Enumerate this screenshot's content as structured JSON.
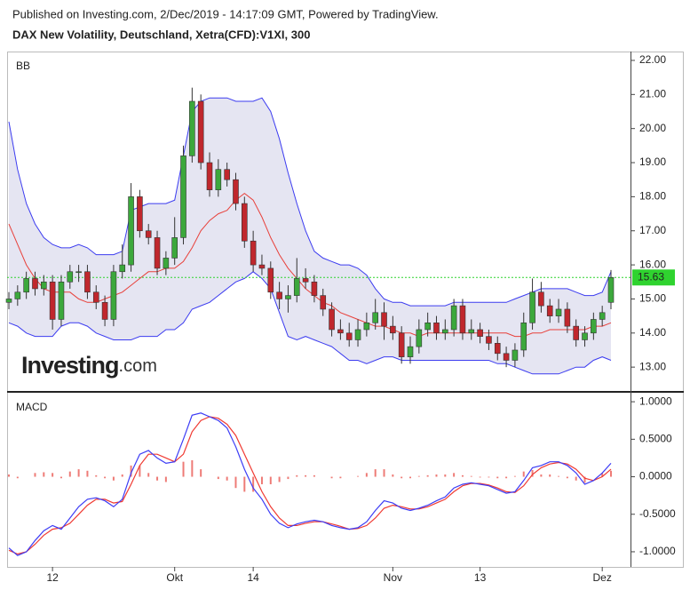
{
  "header": {
    "published": "Published on Investing.com, 2/Dec/2019 - 14:17:09 GMT, Powered by TradingView.",
    "title": "DAX New Volatility, Deutschland, Xetra(CFD):V1XI, 300"
  },
  "logo": {
    "brand": "Investing",
    "suffix": ".com"
  },
  "chart_data": [
    {
      "type": "candlestick",
      "name": "BB",
      "categories": [
        null,
        null,
        null,
        null,
        null,
        "12",
        null,
        null,
        null,
        null,
        null,
        null,
        null,
        null,
        null,
        null,
        null,
        null,
        null,
        "Okt",
        null,
        null,
        null,
        null,
        null,
        null,
        null,
        null,
        "14",
        null,
        null,
        null,
        null,
        null,
        null,
        null,
        null,
        null,
        null,
        null,
        null,
        null,
        null,
        null,
        "Nov",
        null,
        null,
        null,
        null,
        null,
        null,
        null,
        null,
        null,
        "13",
        null,
        null,
        null,
        null,
        null,
        null,
        null,
        null,
        null,
        null,
        null,
        null,
        null,
        "Dez",
        null
      ],
      "open": [
        14.9,
        15.0,
        15.2,
        15.6,
        15.3,
        15.5,
        14.4,
        15.5,
        15.8,
        15.8,
        15.2,
        14.9,
        14.4,
        15.8,
        16.0,
        18.0,
        17.0,
        16.8,
        15.9,
        16.2,
        16.8,
        19.2,
        20.8,
        19.0,
        18.2,
        18.8,
        18.5,
        17.8,
        16.7,
        16.0,
        15.9,
        15.2,
        15.0,
        15.1,
        15.6,
        15.5,
        15.1,
        14.7,
        14.1,
        14.0,
        13.8,
        14.1,
        14.3,
        14.6,
        14.2,
        14.0,
        13.3,
        13.6,
        14.1,
        14.3,
        14.0,
        14.1,
        14.8,
        14.0,
        14.1,
        13.9,
        13.7,
        13.4,
        13.2,
        13.5,
        14.3,
        15.2,
        14.8,
        14.5,
        14.7,
        14.2,
        13.8,
        14.0,
        14.4,
        14.9
      ],
      "high": [
        15.2,
        15.4,
        15.8,
        15.8,
        15.7,
        15.7,
        15.7,
        16.0,
        16.0,
        16.0,
        15.4,
        15.1,
        16.0,
        16.6,
        18.4,
        18.2,
        17.2,
        17.0,
        16.4,
        17.4,
        19.5,
        21.2,
        21.0,
        19.3,
        19.1,
        19.0,
        18.7,
        18.0,
        17.0,
        16.3,
        16.1,
        15.5,
        15.4,
        16.2,
        15.9,
        15.7,
        15.3,
        14.9,
        14.4,
        14.3,
        14.4,
        14.6,
        15.0,
        14.9,
        14.5,
        14.2,
        13.9,
        14.4,
        14.6,
        14.5,
        14.4,
        15.0,
        15.0,
        14.4,
        14.3,
        14.1,
        13.9,
        13.6,
        13.7,
        14.6,
        15.6,
        15.5,
        15.0,
        15.0,
        14.9,
        14.4,
        14.2,
        14.6,
        14.8,
        15.85
      ],
      "low": [
        14.7,
        14.8,
        15.0,
        15.1,
        15.1,
        14.1,
        14.2,
        15.3,
        15.5,
        15.0,
        14.7,
        14.2,
        14.2,
        15.6,
        15.8,
        16.8,
        16.6,
        15.7,
        15.7,
        16.0,
        16.6,
        19.0,
        18.8,
        18.0,
        18.0,
        18.3,
        17.6,
        16.5,
        15.8,
        15.7,
        15.0,
        14.7,
        14.6,
        14.9,
        15.3,
        14.9,
        14.5,
        13.9,
        13.8,
        13.6,
        13.6,
        13.9,
        14.1,
        13.8,
        13.8,
        13.1,
        13.1,
        13.4,
        13.9,
        13.8,
        13.8,
        13.9,
        13.8,
        13.8,
        13.7,
        13.5,
        13.2,
        13.0,
        13.0,
        13.3,
        14.1,
        14.6,
        14.3,
        14.3,
        14.0,
        13.6,
        13.6,
        13.8,
        14.2,
        14.7
      ],
      "close": [
        15.0,
        15.2,
        15.6,
        15.3,
        15.5,
        14.4,
        15.5,
        15.8,
        15.8,
        15.2,
        14.9,
        14.4,
        15.8,
        16.0,
        18.0,
        17.0,
        16.8,
        15.9,
        16.2,
        16.8,
        19.2,
        20.8,
        19.0,
        18.2,
        18.8,
        18.5,
        17.8,
        16.7,
        16.0,
        15.9,
        15.2,
        15.0,
        15.1,
        15.6,
        15.5,
        15.1,
        14.7,
        14.1,
        14.0,
        13.8,
        14.1,
        14.3,
        14.6,
        14.2,
        14.0,
        13.3,
        13.6,
        14.1,
        14.3,
        14.0,
        14.1,
        14.8,
        14.0,
        14.1,
        13.9,
        13.7,
        13.4,
        13.2,
        13.5,
        14.3,
        15.2,
        14.8,
        14.5,
        14.7,
        14.2,
        13.8,
        14.0,
        14.4,
        14.6,
        15.63
      ],
      "upper": [
        20.2,
        18.8,
        17.8,
        17.2,
        16.8,
        16.6,
        16.5,
        16.5,
        16.6,
        16.5,
        16.3,
        16.3,
        16.3,
        16.4,
        17.6,
        17.7,
        17.8,
        17.8,
        17.8,
        17.9,
        19.2,
        20.5,
        20.8,
        20.9,
        20.9,
        20.9,
        20.8,
        20.8,
        20.8,
        20.9,
        20.5,
        19.7,
        18.7,
        17.8,
        17.0,
        16.4,
        16.2,
        16.1,
        16.0,
        16.0,
        15.9,
        15.7,
        15.3,
        15.0,
        14.9,
        14.9,
        14.8,
        14.8,
        14.8,
        14.8,
        14.8,
        14.9,
        14.9,
        14.9,
        14.9,
        14.9,
        14.9,
        14.9,
        15.0,
        15.1,
        15.2,
        15.3,
        15.3,
        15.3,
        15.3,
        15.2,
        15.1,
        15.1,
        15.2,
        15.8
      ],
      "middle": [
        17.2,
        16.6,
        16.0,
        15.6,
        15.3,
        15.2,
        15.2,
        15.2,
        15.0,
        14.9,
        14.9,
        15.0,
        15.1,
        15.2,
        15.4,
        15.6,
        15.8,
        15.8,
        15.9,
        15.9,
        16.1,
        16.5,
        17.0,
        17.3,
        17.5,
        17.6,
        17.9,
        18.1,
        17.9,
        17.4,
        16.8,
        16.3,
        15.9,
        15.6,
        15.3,
        15.1,
        14.9,
        14.8,
        14.6,
        14.5,
        14.4,
        14.3,
        14.2,
        14.2,
        14.1,
        14.0,
        14.0,
        13.9,
        14.0,
        14.0,
        14.0,
        14.0,
        14.0,
        14.0,
        14.0,
        14.0,
        14.0,
        14.0,
        13.9,
        13.9,
        14.0,
        14.0,
        14.1,
        14.1,
        14.1,
        14.1,
        14.1,
        14.2,
        14.2,
        14.3
      ],
      "lower": [
        14.3,
        14.2,
        14.0,
        13.9,
        13.9,
        13.9,
        14.2,
        14.3,
        14.3,
        14.2,
        14.0,
        13.9,
        13.8,
        13.8,
        13.8,
        13.9,
        13.9,
        13.9,
        14.1,
        14.1,
        14.3,
        14.7,
        14.8,
        14.9,
        15.1,
        15.3,
        15.5,
        15.6,
        15.8,
        15.6,
        15.3,
        14.6,
        13.9,
        13.8,
        13.9,
        13.8,
        13.7,
        13.6,
        13.4,
        13.2,
        13.2,
        13.1,
        13.2,
        13.3,
        13.3,
        13.2,
        13.2,
        13.2,
        13.2,
        13.2,
        13.2,
        13.2,
        13.2,
        13.2,
        13.2,
        13.2,
        13.1,
        13.1,
        13.0,
        12.9,
        12.8,
        12.8,
        12.8,
        12.8,
        12.9,
        13.0,
        13.0,
        13.2,
        13.3,
        13.2
      ],
      "up_color": "#3ca83c",
      "down_color": "#c0272d",
      "band_color": "#3c3cf0",
      "band_fill": "#e1e1f0",
      "middle_color": "#e8403a",
      "last_color": "#2fd32f",
      "last_value": 15.63,
      "ylim": [
        12.3,
        22.26
      ],
      "yticks": [
        {
          "value": 13,
          "label": "13.00"
        },
        {
          "value": 14,
          "label": "14.00"
        },
        {
          "value": 15,
          "label": "15.00"
        },
        {
          "value": 16,
          "label": "16.00"
        },
        {
          "value": 17,
          "label": "17.00"
        },
        {
          "value": 18,
          "label": "18.00"
        },
        {
          "value": 19,
          "label": "19.00"
        },
        {
          "value": 20,
          "label": "20.00"
        },
        {
          "value": 21,
          "label": "21.00"
        },
        {
          "value": 22,
          "label": "22.00"
        }
      ]
    },
    {
      "type": "macd",
      "name": "MACD",
      "macd": [
        -0.95,
        -1.05,
        -1.0,
        -0.85,
        -0.72,
        -0.65,
        -0.7,
        -0.55,
        -0.4,
        -0.3,
        -0.28,
        -0.32,
        -0.4,
        -0.3,
        0.05,
        0.3,
        0.35,
        0.25,
        0.18,
        0.2,
        0.5,
        0.82,
        0.85,
        0.8,
        0.75,
        0.65,
        0.4,
        0.1,
        -0.15,
        -0.3,
        -0.5,
        -0.62,
        -0.68,
        -0.63,
        -0.6,
        -0.58,
        -0.6,
        -0.65,
        -0.68,
        -0.7,
        -0.68,
        -0.6,
        -0.45,
        -0.32,
        -0.35,
        -0.42,
        -0.45,
        -0.42,
        -0.38,
        -0.32,
        -0.27,
        -0.15,
        -0.1,
        -0.08,
        -0.1,
        -0.12,
        -0.17,
        -0.22,
        -0.2,
        -0.05,
        0.12,
        0.15,
        0.2,
        0.2,
        0.15,
        0.05,
        -0.1,
        -0.05,
        0.05,
        0.18
      ],
      "signal": [
        -0.98,
        -1.03,
        -1.0,
        -0.9,
        -0.78,
        -0.7,
        -0.68,
        -0.62,
        -0.5,
        -0.38,
        -0.3,
        -0.3,
        -0.35,
        -0.33,
        -0.1,
        0.15,
        0.3,
        0.3,
        0.25,
        0.2,
        0.3,
        0.6,
        0.75,
        0.8,
        0.78,
        0.7,
        0.55,
        0.3,
        0.05,
        -0.2,
        -0.4,
        -0.55,
        -0.65,
        -0.65,
        -0.62,
        -0.6,
        -0.6,
        -0.63,
        -0.66,
        -0.7,
        -0.69,
        -0.65,
        -0.55,
        -0.42,
        -0.38,
        -0.4,
        -0.43,
        -0.43,
        -0.4,
        -0.35,
        -0.3,
        -0.2,
        -0.12,
        -0.09,
        -0.09,
        -0.11,
        -0.15,
        -0.2,
        -0.21,
        -0.12,
        0.03,
        0.12,
        0.17,
        0.19,
        0.17,
        0.1,
        -0.02,
        -0.05,
        0.0,
        0.1
      ],
      "histogram": [
        0.03,
        -0.02,
        0,
        0.05,
        0.06,
        0.05,
        -0.02,
        0.07,
        0.1,
        0.08,
        0.02,
        -0.02,
        -0.05,
        0.03,
        0.15,
        0.15,
        0.05,
        -0.05,
        -0.07,
        0,
        0.2,
        0.22,
        0.1,
        0,
        -0.03,
        -0.05,
        -0.15,
        -0.2,
        -0.2,
        -0.1,
        -0.1,
        -0.07,
        -0.03,
        0.02,
        0.02,
        0.02,
        0,
        -0.02,
        -0.02,
        0,
        0.01,
        0.05,
        0.1,
        0.1,
        0.03,
        -0.02,
        -0.02,
        0.01,
        0.02,
        0.03,
        0.03,
        0.05,
        0.02,
        0.01,
        -0.01,
        -0.01,
        -0.02,
        -0.02,
        0.01,
        0.07,
        0.09,
        0.03,
        0.03,
        0.01,
        -0.02,
        -0.05,
        -0.08,
        0,
        0.05,
        0.08
      ],
      "macd_color": "#3c3cf5",
      "signal_color": "#f03a32",
      "hist_color": "#ee7b76",
      "ylim": [
        -1.19,
        1.12
      ],
      "yticks": [
        {
          "value": -1,
          "label": "-1.0000"
        },
        {
          "value": -0.5,
          "label": "-0.5000"
        },
        {
          "value": 0,
          "label": "0.0000"
        },
        {
          "value": 0.5,
          "label": "0.5000"
        },
        {
          "value": 1,
          "label": "1.0000"
        }
      ]
    }
  ]
}
